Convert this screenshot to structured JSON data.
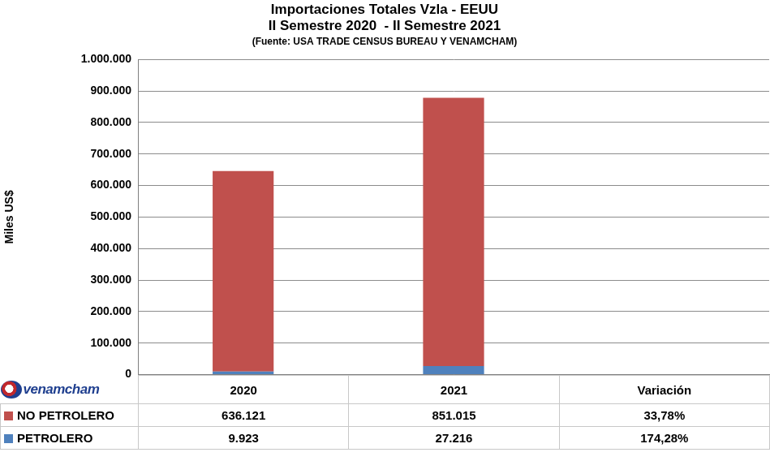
{
  "chart_data": {
    "type": "bar",
    "title": [
      "Importaciones Totales Vzla - EEUU",
      "II Semestre 2020  - II Semestre 2021"
    ],
    "subtitle": "(Fuente: USA TRADE CENSUS BUREAU Y VENAMCHAM)",
    "y_label": "Miles US$",
    "logo": "venamcham",
    "categories": [
      "2020",
      "2021"
    ],
    "variation_header": "Variación",
    "series": [
      {
        "name": "NO PETROLERO",
        "color": "#c0504d",
        "values": [
          636121,
          851015
        ],
        "value_labels": [
          "636.121",
          "851.015"
        ],
        "variation": {
          "value": 33.78,
          "label": "33,78%"
        }
      },
      {
        "name": "PETROLERO",
        "color": "#4f81bd",
        "values": [
          9923,
          27216
        ],
        "value_labels": [
          "9.923",
          "27.216"
        ],
        "variation": {
          "value": 174.28,
          "label": "174,28%"
        }
      }
    ],
    "stacked": true,
    "ylim": [
      0,
      1000000
    ],
    "yticks": [
      0,
      {
        "value": 100000,
        "label": "100.000"
      },
      {
        "value": 200000,
        "label": "200.000"
      },
      {
        "value": 300000,
        "label": "300.000"
      },
      {
        "value": 400000,
        "label": "400.000"
      },
      {
        "value": 500000,
        "label": "500.000"
      },
      {
        "value": 600000,
        "label": "600.000"
      },
      {
        "value": 700000,
        "label": "700.000"
      },
      {
        "value": 800000,
        "label": "800.000"
      },
      {
        "value": 900000,
        "label": "900.000"
      },
      {
        "value": 1000000,
        "label": "1.000.000"
      }
    ],
    "grid": true,
    "tick_labels": "y"
  }
}
